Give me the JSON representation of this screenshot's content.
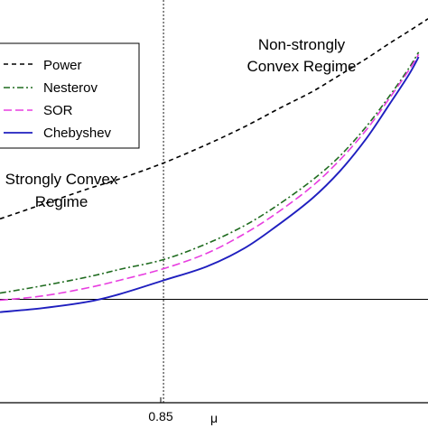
{
  "chart_data": {
    "type": "line",
    "xlabel": "μ",
    "x_tick_labels": [
      {
        "x": 0.85,
        "label": "0.85"
      }
    ],
    "xlim": [
      0.7608,
      0.9943
    ],
    "ylim": [
      0.0,
      1.0
    ],
    "reference_lines": {
      "vertical_x": 0.85,
      "horizontal_y": 0.2566
    },
    "legend": {
      "placement": "upper-left",
      "entries": [
        "Power",
        "Nesterov",
        "SOR",
        "Chebyshev"
      ]
    },
    "annotations": [
      {
        "text_lines": [
          "Non-strongly",
          "Convex Regime"
        ],
        "anchor": "upper-right"
      },
      {
        "text_lines": [
          "Strongly Convex",
          "Regime"
        ],
        "anchor": "middle-left"
      }
    ],
    "series": [
      {
        "name": "Power",
        "color": "#000000",
        "style": "dashed",
        "x": [
          0.7608,
          0.784,
          0.809,
          0.8266,
          0.85,
          0.8736,
          0.894,
          0.9137,
          0.931,
          0.9461,
          0.9607,
          0.9738,
          0.984,
          0.9943
        ],
        "y": [
          0.4566,
          0.4926,
          0.5314,
          0.5567,
          0.5954,
          0.6411,
          0.6848,
          0.7321,
          0.772,
          0.8135,
          0.8545,
          0.8939,
          0.923,
          0.9533
        ]
      },
      {
        "name": "Nesterov",
        "color": "#1f6b1f",
        "style": "dashdot",
        "x": [
          0.7608,
          0.7842,
          0.809,
          0.8266,
          0.85,
          0.8735,
          0.894,
          0.9115,
          0.931,
          0.9461,
          0.9607,
          0.9738,
          0.984,
          0.9892
        ],
        "y": [
          0.2721,
          0.2905,
          0.3126,
          0.3316,
          0.3553,
          0.3948,
          0.4393,
          0.4881,
          0.5521,
          0.6121,
          0.6862,
          0.7648,
          0.8317,
          0.8703
        ]
      },
      {
        "name": "SOR",
        "color": "#e83ee0",
        "style": "longdash",
        "x": [
          0.7608,
          0.7842,
          0.809,
          0.8266,
          0.85,
          0.8735,
          0.894,
          0.9115,
          0.931,
          0.9461,
          0.9607,
          0.9738,
          0.984,
          0.9892
        ],
        "y": [
          0.2544,
          0.2652,
          0.2856,
          0.3046,
          0.3327,
          0.3708,
          0.4191,
          0.47,
          0.5371,
          0.6022,
          0.6779,
          0.7594,
          0.8267,
          0.8647
        ]
      },
      {
        "name": "Chebyshev",
        "color": "#1f1fbf",
        "style": "solid",
        "x": [
          0.7608,
          0.7842,
          0.809,
          0.8266,
          0.85,
          0.8735,
          0.894,
          0.9115,
          0.931,
          0.9461,
          0.9607,
          0.9738,
          0.984,
          0.9892
        ],
        "y": [
          0.2249,
          0.235,
          0.2509,
          0.2703,
          0.3038,
          0.3382,
          0.3832,
          0.4378,
          0.5068,
          0.5745,
          0.6563,
          0.7448,
          0.8157,
          0.8586
        ]
      }
    ]
  }
}
